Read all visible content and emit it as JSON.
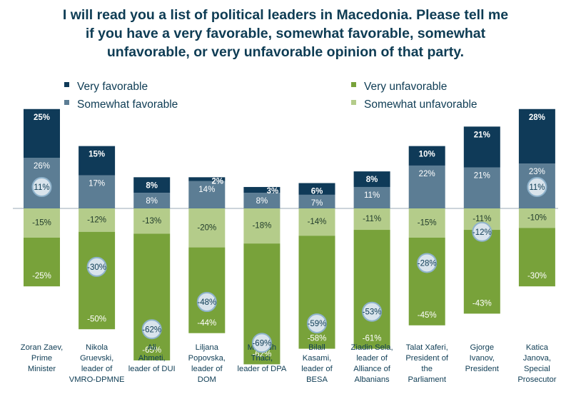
{
  "title": {
    "lines": [
      "I will read you a list of political leaders in Macedonia.  Please tell me",
      "if you have a very favorable, somewhat favorable, somewhat",
      "unfavorable, or very unfavorable opinion of that party."
    ]
  },
  "colors": {
    "very_favorable": "#0f3a58",
    "somewhat_favorable": "#5c7d94",
    "very_unfavorable": "#78a23a",
    "somewhat_unfavorable": "#b4cc8a",
    "text": "#0e3c54",
    "bubble_fill": "#d9e4ec",
    "bubble_stroke": "#8fb3cc"
  },
  "chart_data": {
    "type": "bar",
    "stacked": "diverging",
    "title": "I will read you a list of political leaders in Macedonia.  Please tell me if you have a very favorable, somewhat favorable, somewhat unfavorable, or very unfavorable opinion of that party.",
    "categories": [
      [
        "Zoran Zaev,",
        "Prime",
        "Minister"
      ],
      [
        "Nikola",
        "Gruevski,",
        "leader of",
        "VMRO-DPMNE"
      ],
      [
        "Ali",
        "Ahmeti,",
        "leader of DUI"
      ],
      [
        "Liljana",
        "Popovska,",
        "",
        "leader of",
        "DOM"
      ],
      [
        "Menduh",
        "Thaci,",
        "",
        "leader of DPA"
      ],
      [
        "Bilall",
        "Kasami,",
        "",
        "leader of",
        "BESA"
      ],
      [
        "Ziadin Sela,",
        "",
        "leader of",
        "Alliance of",
        "Albanians"
      ],
      [
        "Talat Xaferi,",
        "President of",
        "the",
        "Parliament"
      ],
      [
        "Gjorge",
        "Ivanov,",
        "President"
      ],
      [
        "Katica",
        "Janova,",
        "Special",
        "Prosecutor"
      ]
    ],
    "legend": [
      {
        "key": "very_favorable",
        "label": "Very favorable"
      },
      {
        "key": "somewhat_favorable",
        "label": "Somewhat favorable"
      },
      {
        "key": "very_unfavorable",
        "label": "Very unfavorable"
      },
      {
        "key": "somewhat_unfavorable",
        "label": "Somewhat unfavorable"
      }
    ],
    "legend_position": "top",
    "series": [
      {
        "name": "Very favorable",
        "key": "very_favorable",
        "values": [
          25,
          15,
          8,
          2,
          3,
          6,
          8,
          10,
          21,
          28
        ],
        "labels": [
          "25%",
          "15%",
          "8%",
          "2%",
          "3%",
          "6%",
          "8%",
          "10%",
          "21%",
          "28%"
        ]
      },
      {
        "name": "Somewhat favorable",
        "key": "somewhat_favorable",
        "values": [
          26,
          17,
          8,
          14,
          8,
          7,
          11,
          22,
          21,
          23
        ],
        "labels": [
          "26%",
          "17%",
          "8%",
          "14%",
          "8%",
          "7%",
          "11%",
          "22%",
          "21%",
          "23%"
        ]
      },
      {
        "name": "Somewhat unfavorable",
        "key": "somewhat_unfavorable",
        "values": [
          -15,
          -12,
          -13,
          -20,
          -18,
          -14,
          -11,
          -15,
          -11,
          -10
        ],
        "labels": [
          "-15%",
          "-12%",
          "-13%",
          "-20%",
          "-18%",
          "-14%",
          "-11%",
          "-15%",
          "-11%",
          "-10%"
        ]
      },
      {
        "name": "Very unfavorable",
        "key": "very_unfavorable",
        "values": [
          -25,
          -50,
          -65,
          -44,
          -62,
          -58,
          -61,
          -45,
          -43,
          -30
        ],
        "labels": [
          "-25%",
          "-50%",
          "-65%",
          "-44%",
          "-62%",
          "-58%",
          "-61%",
          "-45%",
          "-43%",
          "-30%"
        ]
      }
    ],
    "bubbles": [
      {
        "index": 0,
        "label": "11%",
        "value": 11
      },
      {
        "index": 1,
        "label": "-30%",
        "value": -30
      },
      {
        "index": 2,
        "label": "-62%",
        "value": -62
      },
      {
        "index": 3,
        "label": "-48%",
        "value": -48
      },
      {
        "index": 4,
        "label": "-69%",
        "value": -69
      },
      {
        "index": 5,
        "label": "-59%",
        "value": -59
      },
      {
        "index": 6,
        "label": "-53%",
        "value": -53
      },
      {
        "index": 7,
        "label": "-28%",
        "value": -28
      },
      {
        "index": 8,
        "label": "-12%",
        "value": -12
      },
      {
        "index": 9,
        "label": "11%",
        "value": 11
      }
    ],
    "ylim": [
      -84,
      61
    ],
    "grid": false,
    "xlabel": "",
    "ylabel": ""
  }
}
